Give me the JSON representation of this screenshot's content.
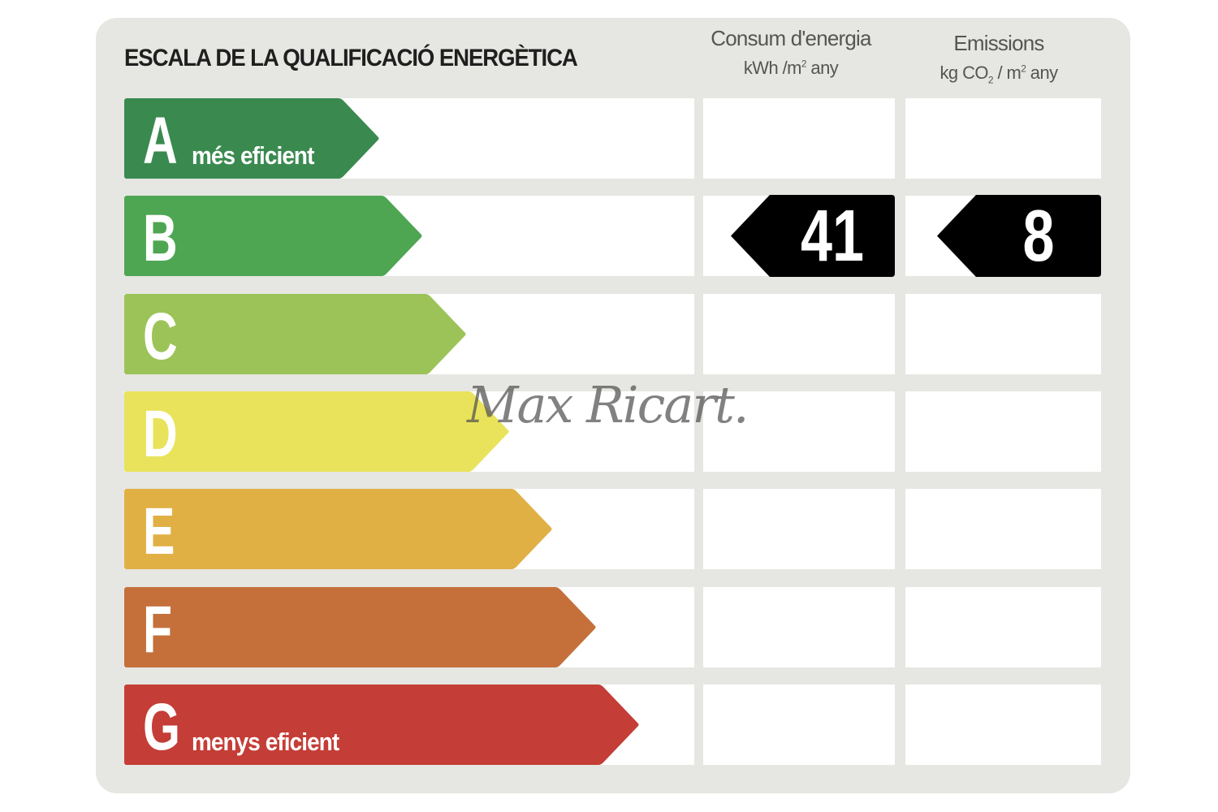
{
  "title": "ESCALA DE LA QUALIFICACIÓ ENERGÈTICA",
  "columns": {
    "consumption": {
      "title": "Consum d'energia",
      "unit_pre": "kWh /m",
      "unit_sup": "2",
      "unit_post": " any"
    },
    "emissions": {
      "title": "Emissions",
      "unit_pre": "kg CO",
      "unit_sub": "2",
      "unit_mid": " / m",
      "unit_sup": "2",
      "unit_post": " any"
    }
  },
  "classes": [
    {
      "letter": "A",
      "label": "més eficient",
      "color": "#3a8a50"
    },
    {
      "letter": "B",
      "label": "",
      "color": "#4ea653"
    },
    {
      "letter": "C",
      "label": "",
      "color": "#9cc358"
    },
    {
      "letter": "D",
      "label": "",
      "color": "#e8e35a"
    },
    {
      "letter": "E",
      "label": "",
      "color": "#e1b045"
    },
    {
      "letter": "F",
      "label": "",
      "color": "#c5703b"
    },
    {
      "letter": "G",
      "label": "menys eficient",
      "color": "#c43d36"
    }
  ],
  "rating": {
    "class": "B",
    "consumption_value": "41",
    "emissions_value": "8"
  },
  "watermark": "Max Ricart."
}
